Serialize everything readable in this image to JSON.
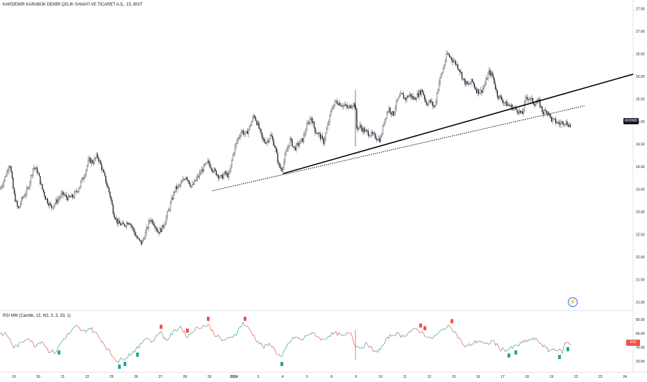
{
  "title": "KARDEMİR KARABÜK DEMİR ÇELİK SANAYİ VE TİCARET A.Ş., 15, BIST",
  "indicator_title": "RSI MM (Candle, 13, hl2, 3, 3, 33, 1)",
  "price_tag": {
    "symbol": "KRDMD",
    "value": "25.06"
  },
  "rsi_tag": {
    "label": "RSI",
    "value": "44.42"
  },
  "flash_icon": "lightning-icon",
  "colors": {
    "up": "#26a69a",
    "down": "#ef5350",
    "candle": "#131722",
    "rsi_up": "#26a69a",
    "rsi_down": "#ef5350",
    "trend": "#000000"
  },
  "chart_data": {
    "type": "candlestick",
    "price_axis_ticks": [
      "27.50",
      "27.00",
      "26.50",
      "26.00",
      "25.50",
      "25.00",
      "24.50",
      "24.00",
      "23.50",
      "23.00",
      "22.50",
      "22.00",
      "21.50",
      "21.00"
    ],
    "rsi_axis_ticks": [
      "80.00",
      "60.00",
      "40.00",
      "20.00"
    ],
    "x_ticks": [
      "19",
      "20",
      "21",
      "22",
      "25",
      "26",
      "27",
      "28",
      "29",
      "2024",
      "3",
      "4",
      "5",
      "8",
      "9",
      "10",
      "11",
      "12",
      "15",
      "16",
      "17",
      "18",
      "19",
      "22",
      "23",
      "24"
    ],
    "ylim": [
      20.85,
      27.6
    ],
    "rsi_ylim": [
      10,
      90
    ],
    "price_path": [
      [
        0,
        23.5
      ],
      [
        8,
        23.8
      ],
      [
        14,
        24.1
      ],
      [
        20,
        23.4
      ],
      [
        26,
        23.05
      ],
      [
        32,
        23.3
      ],
      [
        40,
        23.5
      ],
      [
        48,
        24.0
      ],
      [
        54,
        23.9
      ],
      [
        60,
        23.55
      ],
      [
        66,
        23.3
      ],
      [
        74,
        23.1
      ],
      [
        82,
        23.25
      ],
      [
        90,
        23.4
      ],
      [
        98,
        23.3
      ],
      [
        106,
        23.35
      ],
      [
        114,
        23.55
      ],
      [
        122,
        23.85
      ],
      [
        128,
        24.15
      ],
      [
        134,
        24.1
      ],
      [
        140,
        24.25
      ],
      [
        146,
        24.0
      ],
      [
        152,
        23.7
      ],
      [
        158,
        23.4
      ],
      [
        164,
        22.95
      ],
      [
        170,
        22.75
      ],
      [
        178,
        22.7
      ],
      [
        186,
        22.8
      ],
      [
        192,
        22.6
      ],
      [
        198,
        22.4
      ],
      [
        204,
        22.3
      ],
      [
        210,
        22.55
      ],
      [
        216,
        22.85
      ],
      [
        222,
        22.75
      ],
      [
        228,
        22.55
      ],
      [
        234,
        22.65
      ],
      [
        240,
        22.9
      ],
      [
        246,
        23.2
      ],
      [
        252,
        23.5
      ],
      [
        260,
        23.6
      ],
      [
        268,
        23.8
      ],
      [
        276,
        23.55
      ],
      [
        282,
        23.7
      ],
      [
        288,
        23.85
      ],
      [
        294,
        24.0
      ],
      [
        300,
        24.1
      ],
      [
        306,
        23.95
      ],
      [
        312,
        23.85
      ],
      [
        318,
        23.75
      ],
      [
        324,
        23.85
      ],
      [
        330,
        23.8
      ],
      [
        336,
        24.3
      ],
      [
        342,
        24.6
      ],
      [
        348,
        24.8
      ],
      [
        354,
        24.7
      ],
      [
        360,
        24.9
      ],
      [
        366,
        25.15
      ],
      [
        372,
        24.9
      ],
      [
        378,
        24.6
      ],
      [
        384,
        24.55
      ],
      [
        390,
        24.7
      ],
      [
        396,
        24.45
      ],
      [
        402,
        24.0
      ],
      [
        406,
        23.95
      ],
      [
        412,
        24.3
      ],
      [
        418,
        24.6
      ],
      [
        424,
        24.4
      ],
      [
        430,
        24.5
      ],
      [
        436,
        24.6
      ],
      [
        442,
        24.9
      ],
      [
        448,
        25.1
      ],
      [
        454,
        24.8
      ],
      [
        460,
        24.7
      ],
      [
        466,
        24.55
      ],
      [
        472,
        24.9
      ],
      [
        478,
        25.3
      ],
      [
        484,
        25.45
      ],
      [
        490,
        25.4
      ],
      [
        496,
        25.35
      ],
      [
        502,
        25.3
      ],
      [
        508,
        25.4
      ],
      [
        512,
        25.35
      ],
      [
        514,
        24.85
      ],
      [
        518,
        24.9
      ],
      [
        524,
        24.8
      ],
      [
        530,
        24.75
      ],
      [
        536,
        24.7
      ],
      [
        542,
        24.65
      ],
      [
        548,
        24.6
      ],
      [
        554,
        25.05
      ],
      [
        560,
        25.3
      ],
      [
        566,
        25.15
      ],
      [
        572,
        25.45
      ],
      [
        578,
        25.6
      ],
      [
        584,
        25.5
      ],
      [
        590,
        25.6
      ],
      [
        596,
        25.5
      ],
      [
        602,
        25.6
      ],
      [
        608,
        25.7
      ],
      [
        614,
        25.4
      ],
      [
        620,
        25.45
      ],
      [
        626,
        25.3
      ],
      [
        632,
        25.85
      ],
      [
        638,
        26.15
      ],
      [
        644,
        26.5
      ],
      [
        650,
        26.4
      ],
      [
        656,
        26.3
      ],
      [
        662,
        26.15
      ],
      [
        668,
        25.9
      ],
      [
        674,
        25.8
      ],
      [
        680,
        25.9
      ],
      [
        686,
        25.7
      ],
      [
        692,
        25.65
      ],
      [
        698,
        25.8
      ],
      [
        704,
        26.1
      ],
      [
        710,
        26.0
      ],
      [
        716,
        25.6
      ],
      [
        722,
        25.5
      ],
      [
        728,
        25.4
      ],
      [
        734,
        25.35
      ],
      [
        740,
        25.3
      ],
      [
        746,
        25.25
      ],
      [
        752,
        25.15
      ],
      [
        758,
        25.55
      ],
      [
        764,
        25.5
      ],
      [
        770,
        25.4
      ],
      [
        776,
        25.45
      ],
      [
        782,
        25.2
      ],
      [
        788,
        25.25
      ],
      [
        794,
        25.05
      ],
      [
        800,
        25.0
      ],
      [
        806,
        24.95
      ],
      [
        812,
        25.0
      ],
      [
        818,
        24.95
      ],
      [
        822,
        24.9
      ]
    ],
    "rsi_path": [
      [
        0,
        60
      ],
      [
        10,
        58
      ],
      [
        20,
        40
      ],
      [
        30,
        45
      ],
      [
        40,
        55
      ],
      [
        50,
        42
      ],
      [
        60,
        50
      ],
      [
        70,
        35
      ],
      [
        80,
        33
      ],
      [
        90,
        50
      ],
      [
        100,
        60
      ],
      [
        110,
        70
      ],
      [
        120,
        62
      ],
      [
        130,
        68
      ],
      [
        140,
        58
      ],
      [
        150,
        45
      ],
      [
        160,
        30
      ],
      [
        170,
        20
      ],
      [
        180,
        25
      ],
      [
        190,
        32
      ],
      [
        200,
        40
      ],
      [
        210,
        55
      ],
      [
        220,
        48
      ],
      [
        230,
        63
      ],
      [
        240,
        50
      ],
      [
        250,
        62
      ],
      [
        260,
        70
      ],
      [
        270,
        55
      ],
      [
        280,
        66
      ],
      [
        290,
        70
      ],
      [
        300,
        72
      ],
      [
        310,
        58
      ],
      [
        320,
        50
      ],
      [
        330,
        52
      ],
      [
        340,
        60
      ],
      [
        350,
        75
      ],
      [
        360,
        65
      ],
      [
        370,
        50
      ],
      [
        380,
        40
      ],
      [
        390,
        45
      ],
      [
        400,
        30
      ],
      [
        406,
        25
      ],
      [
        415,
        45
      ],
      [
        425,
        55
      ],
      [
        435,
        50
      ],
      [
        445,
        60
      ],
      [
        455,
        58
      ],
      [
        465,
        50
      ],
      [
        475,
        58
      ],
      [
        485,
        60
      ],
      [
        495,
        55
      ],
      [
        505,
        63
      ],
      [
        512,
        42
      ],
      [
        520,
        40
      ],
      [
        530,
        45
      ],
      [
        540,
        32
      ],
      [
        550,
        40
      ],
      [
        560,
        55
      ],
      [
        570,
        60
      ],
      [
        580,
        56
      ],
      [
        590,
        62
      ],
      [
        600,
        66
      ],
      [
        610,
        60
      ],
      [
        620,
        52
      ],
      [
        630,
        58
      ],
      [
        640,
        68
      ],
      [
        650,
        70
      ],
      [
        660,
        55
      ],
      [
        670,
        40
      ],
      [
        680,
        45
      ],
      [
        690,
        50
      ],
      [
        700,
        43
      ],
      [
        710,
        50
      ],
      [
        720,
        38
      ],
      [
        730,
        36
      ],
      [
        740,
        40
      ],
      [
        750,
        45
      ],
      [
        760,
        50
      ],
      [
        770,
        52
      ],
      [
        780,
        45
      ],
      [
        790,
        35
      ],
      [
        800,
        38
      ],
      [
        810,
        33
      ],
      [
        815,
        48
      ],
      [
        822,
        44
      ]
    ],
    "trendlines": [
      {
        "style": "solid",
        "from": [
          408,
          23.85
        ],
        "to": [
          912,
          26.05
        ]
      },
      {
        "style": "dotted",
        "from": [
          306,
          23.47
        ],
        "to": [
          842,
          25.35
        ]
      }
    ]
  }
}
